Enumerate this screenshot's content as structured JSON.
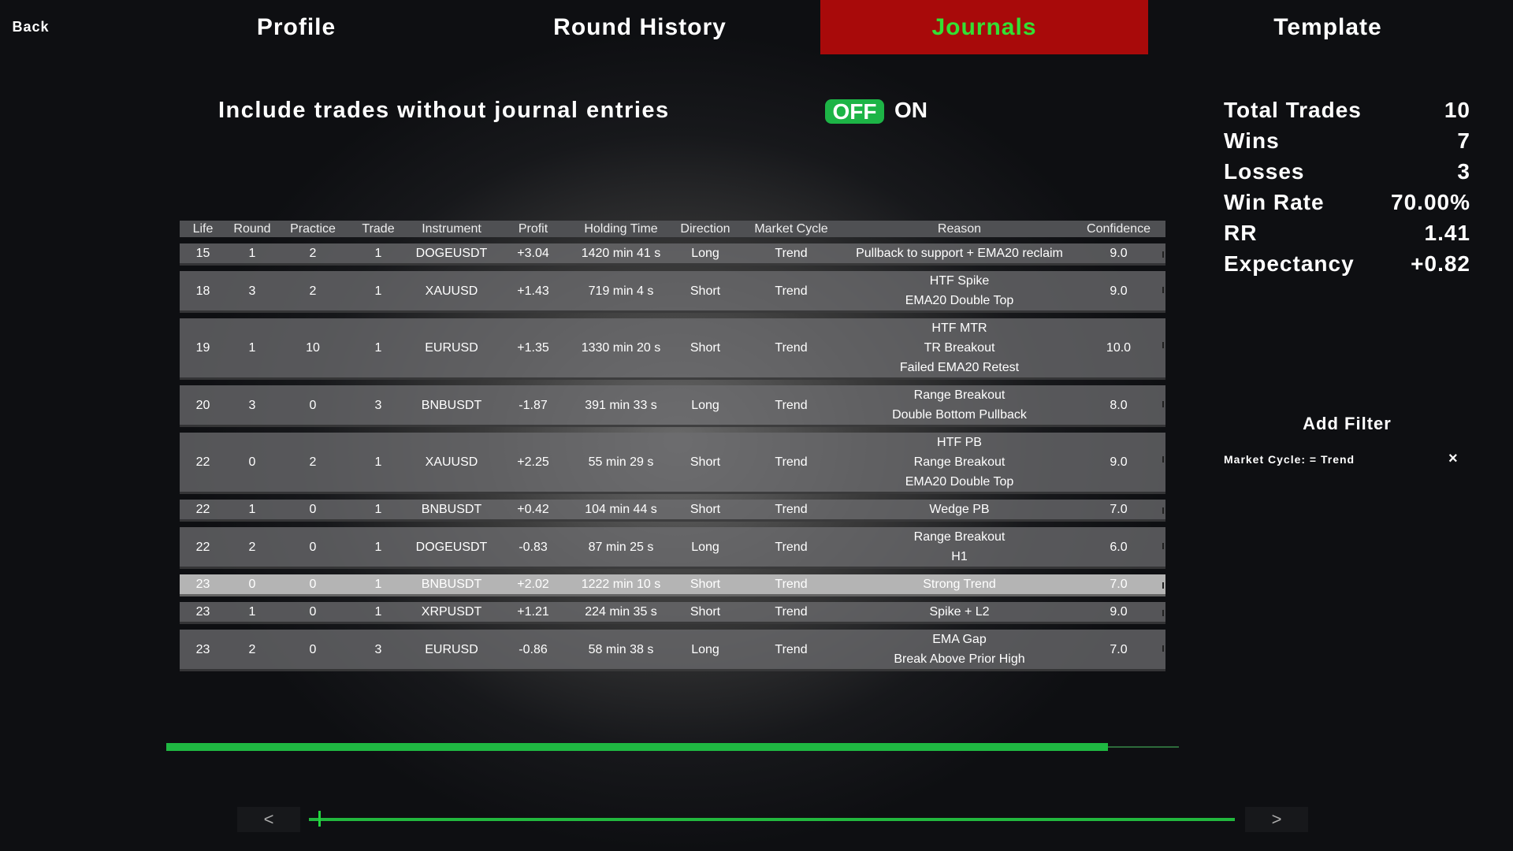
{
  "nav": {
    "back": "Back",
    "tabs": [
      {
        "label": "Profile",
        "active": false
      },
      {
        "label": "Round History",
        "active": false
      },
      {
        "label": "Journals",
        "active": true
      },
      {
        "label": "Template",
        "active": false
      }
    ]
  },
  "toggle": {
    "label": "Include trades without journal entries",
    "off": "OFF",
    "on": "ON",
    "state": "OFF"
  },
  "stats": [
    {
      "label": "Total Trades",
      "value": "10"
    },
    {
      "label": "Wins",
      "value": "7"
    },
    {
      "label": "Losses",
      "value": "3"
    },
    {
      "label": "Win Rate",
      "value": "70.00%"
    },
    {
      "label": "RR",
      "value": "1.41"
    },
    {
      "label": "Expectancy",
      "value": "+0.82"
    }
  ],
  "table": {
    "columns": [
      "Life",
      "Round",
      "Practice",
      "Trade",
      "Instrument",
      "Profit",
      "Holding Time",
      "Direction",
      "Market Cycle",
      "Reason",
      "Confidence"
    ],
    "selected_index": 7,
    "rows": [
      [
        "15",
        "1",
        "2",
        "1",
        "DOGEUSDT",
        "+3.04",
        "1420 min 41 s",
        "Long",
        "Trend",
        [
          "Pullback to support + EMA20 reclaim"
        ],
        "9.0"
      ],
      [
        "18",
        "3",
        "2",
        "1",
        "XAUUSD",
        "+1.43",
        "719 min 4 s",
        "Short",
        "Trend",
        [
          "HTF Spike",
          "EMA20 Double Top"
        ],
        "9.0"
      ],
      [
        "19",
        "1",
        "10",
        "1",
        "EURUSD",
        "+1.35",
        "1330 min 20 s",
        "Short",
        "Trend",
        [
          "HTF MTR",
          "TR Breakout",
          "Failed EMA20 Retest"
        ],
        "10.0"
      ],
      [
        "20",
        "3",
        "0",
        "3",
        "BNBUSDT",
        "-1.87",
        "391 min 33 s",
        "Long",
        "Trend",
        [
          "Range Breakout",
          "Double Bottom Pullback"
        ],
        "8.0"
      ],
      [
        "22",
        "0",
        "2",
        "1",
        "XAUUSD",
        "+2.25",
        "55 min 29 s",
        "Short",
        "Trend",
        [
          "HTF PB",
          "Range Breakout",
          "EMA20 Double Top"
        ],
        "9.0"
      ],
      [
        "22",
        "1",
        "0",
        "1",
        "BNBUSDT",
        "+0.42",
        "104 min 44 s",
        "Short",
        "Trend",
        [
          "Wedge PB"
        ],
        "7.0"
      ],
      [
        "22",
        "2",
        "0",
        "1",
        "DOGEUSDT",
        "-0.83",
        "87 min 25 s",
        "Long",
        "Trend",
        [
          "Range Breakout",
          "H1"
        ],
        "6.0"
      ],
      [
        "23",
        "0",
        "0",
        "1",
        "BNBUSDT",
        "+2.02",
        "1222 min 10 s",
        "Short",
        "Trend",
        [
          "Strong Trend"
        ],
        "7.0"
      ],
      [
        "23",
        "1",
        "0",
        "1",
        "XRPUSDT",
        "+1.21",
        "224 min 35 s",
        "Short",
        "Trend",
        [
          "Spike + L2"
        ],
        "9.0"
      ],
      [
        "23",
        "2",
        "0",
        "3",
        "EURUSD",
        "-0.86",
        "58 min 38 s",
        "Long",
        "Trend",
        [
          "EMA Gap",
          "Break Above Prior High"
        ],
        "7.0"
      ]
    ]
  },
  "filters": {
    "title": "Add Filter",
    "items": [
      {
        "text": "Market Cycle: = Trend",
        "remove": "×"
      }
    ]
  },
  "scroll": {
    "horizontal_progress": 0.93,
    "page_slider": 0.01,
    "prev": "<",
    "next": ">"
  },
  "colors": {
    "accent_green": "#1fb842",
    "active_tab": "#a80a0a",
    "active_tab_text": "#33e033",
    "background": "#0e0f12"
  }
}
